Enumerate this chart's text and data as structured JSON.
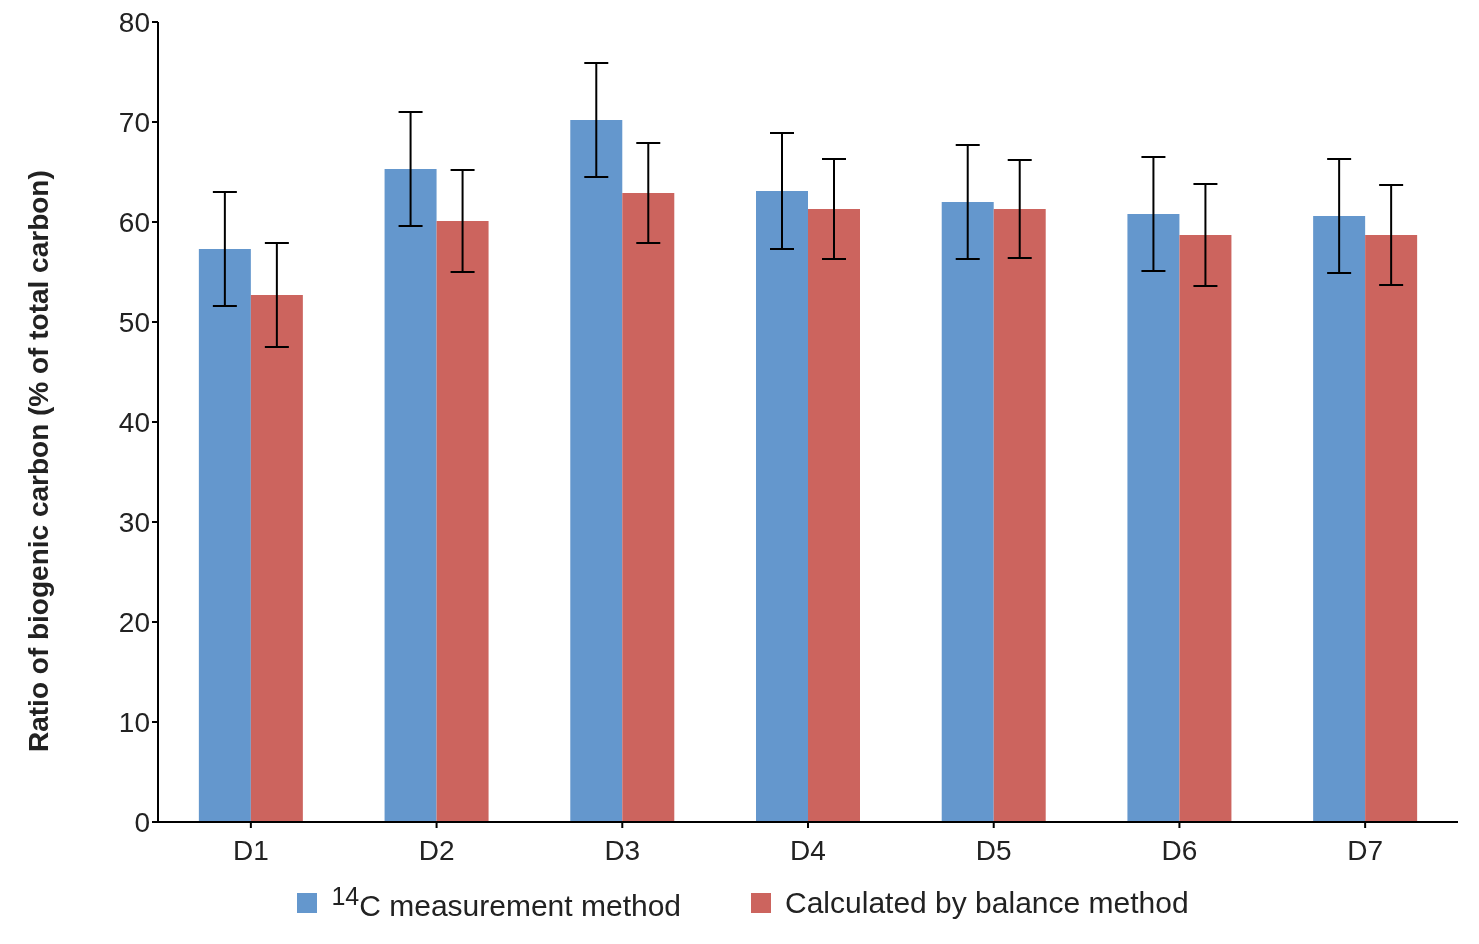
{
  "chart_data": {
    "type": "bar",
    "ylabel": "Ratio of biogenic carbon (% of total carbon)",
    "categories": [
      "D1",
      "D2",
      "D3",
      "D4",
      "D5",
      "D6",
      "D7"
    ],
    "series": [
      {
        "name": "$^{14}$C measurement method",
        "color": "#6497cd",
        "values": [
          57.3,
          65.3,
          70.2,
          63.1,
          62.0,
          60.8,
          60.6
        ],
        "errors": [
          5.7,
          5.7,
          5.7,
          5.8,
          5.7,
          5.7,
          5.7
        ]
      },
      {
        "name": "Calculated by balance method",
        "color": "#cc645e",
        "values": [
          52.7,
          60.1,
          62.9,
          61.3,
          61.3,
          58.7,
          58.7
        ],
        "errors": [
          5.2,
          5.1,
          5,
          5,
          4.9,
          5.1,
          5
        ]
      }
    ],
    "ylim": [
      0,
      80
    ],
    "yticks": [
      0,
      10,
      20,
      30,
      40,
      50,
      60,
      70,
      80
    ],
    "grid": false,
    "legend": "bottom"
  }
}
